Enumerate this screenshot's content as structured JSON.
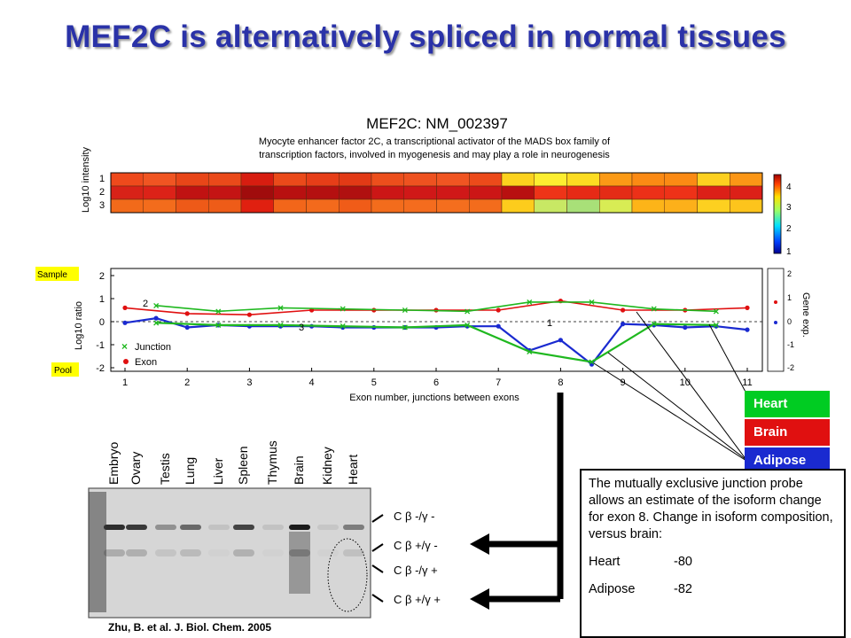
{
  "title": "MEF2C is alternatively spliced in normal tissues",
  "figure": {
    "gene_title": "MEF2C: NM_002397",
    "gene_desc_1": "Myocyte enhancer factor 2C, a transcriptional activator of the MADS box family of",
    "gene_desc_2": "transcription factors, involved in myogenesis and may play a role in neurogenesis",
    "heatmap_ylabel": "Log10 intensity",
    "heatmap_rows": [
      "1",
      "2",
      "3"
    ],
    "colorbar_ticks": [
      "4",
      "3",
      "2",
      "1"
    ],
    "sample_label": "Sample",
    "pool_label": "Pool",
    "ratio_ylabel": "Log10 ratio",
    "gene_exp_label": "Gene exp.",
    "yticks": [
      "2",
      "1",
      "0",
      "-1",
      "-2"
    ],
    "xticks": [
      "1",
      "2",
      "3",
      "4",
      "5",
      "6",
      "7",
      "8",
      "9",
      "10",
      "11"
    ],
    "xlabel": "Exon number, junctions between exons",
    "legend_junction": "Junction",
    "legend_exon": "Exon",
    "annot": [
      "2",
      "3",
      "1"
    ]
  },
  "chart_data": {
    "type": "line",
    "xlabel": "Exon number, junctions between exons",
    "ylabel": "Log10 ratio",
    "ylim": [
      -2,
      2
    ],
    "xlim": [
      1,
      11
    ],
    "series": [
      {
        "name": "Exon",
        "x": [
          1,
          2,
          3,
          4,
          5,
          6,
          7,
          8,
          9,
          10,
          11
        ],
        "y": [
          0.6,
          0.35,
          0.3,
          0.5,
          0.5,
          0.5,
          0.5,
          0.9,
          0.5,
          0.5,
          0.6
        ]
      },
      {
        "name": "Junction",
        "x": [
          1.5,
          2.5,
          3.5,
          4.5,
          5.5,
          6.5,
          7.5,
          8.5,
          9.5,
          10.5
        ],
        "y": [
          0.7,
          0.45,
          0.6,
          0.55,
          0.5,
          0.45,
          0.85,
          0.85,
          0.55,
          0.45
        ]
      },
      {
        "name": "Exon",
        "x": [
          1,
          1.5,
          2,
          2.5,
          3,
          3.5,
          4,
          4.5,
          5,
          5.5,
          6,
          6.5,
          7,
          7.5,
          8,
          8.5,
          9,
          9.5,
          10,
          10.5,
          11
        ],
        "y": [
          -0.05,
          0.15,
          -0.25,
          -0.15,
          -0.2,
          -0.2,
          -0.2,
          -0.25,
          -0.25,
          -0.25,
          -0.25,
          -0.2,
          -0.2,
          -1.25,
          -0.8,
          -1.85,
          -0.1,
          -0.15,
          -0.25,
          -0.2,
          -0.35
        ]
      },
      {
        "name": "Junction",
        "x": [
          1.5,
          2.5,
          3.5,
          4.5,
          5.5,
          6.5,
          7.5,
          8.5,
          9.5,
          10.5
        ],
        "y": [
          -0.05,
          -0.15,
          -0.15,
          -0.2,
          -0.25,
          -0.15,
          -1.3,
          -1.75,
          -0.1,
          -0.15
        ]
      }
    ],
    "heatmap": {
      "rows": [
        "1",
        "2",
        "3"
      ],
      "colors": [
        [
          "#ee4a1c",
          "#f05522",
          "#e84618",
          "#ea4a1a",
          "#d71d10",
          "#ea4a1a",
          "#e63e18",
          "#e23a16",
          "#ec4f1c",
          "#ee5220",
          "#f05522",
          "#ec4a1a",
          "#fcd21e",
          "#fdee30",
          "#fcdc22",
          "#fb9a16",
          "#fb8a14",
          "#fb8a14",
          "#fdd020",
          "#fb9616"
        ],
        [
          "#d82218",
          "#dc2218",
          "#c01212",
          "#c41414",
          "#a00c0c",
          "#b81010",
          "#b41010",
          "#b01010",
          "#cc1616",
          "#d01818",
          "#d01818",
          "#cc1616",
          "#b81010",
          "#ee3418",
          "#e62a16",
          "#e42c16",
          "#ec3018",
          "#ee3218",
          "#dc2018",
          "#dc2018"
        ],
        [
          "#f26a1a",
          "#f36c1c",
          "#ee5a18",
          "#ee5c18",
          "#e02010",
          "#f2661a",
          "#f36a1c",
          "#f05c18",
          "#f36c1c",
          "#f46c1e",
          "#f46e1e",
          "#f36c1c",
          "#fdcc1c",
          "#c8e864",
          "#a8e078",
          "#d8ec54",
          "#fdb418",
          "#fdb01a",
          "#fdd020",
          "#fdc41c"
        ]
      ]
    }
  },
  "callouts": [
    {
      "label": "Heart",
      "color": "#00cc22"
    },
    {
      "label": "Brain",
      "color": "#e01010"
    },
    {
      "label": "Adipose",
      "color": "#1a2ad0"
    }
  ],
  "gel": {
    "lanes": [
      "Embryo",
      "Ovary",
      "Testis",
      "Lung",
      "Liver",
      "Spleen",
      "Thymus",
      "Brain",
      "Kidney",
      "Heart"
    ],
    "bands": [
      "C β -/γ -",
      "C β +/γ -",
      "C β -/γ +",
      "C β +/γ +"
    ]
  },
  "note": {
    "text": "The mutually exclusive junction probe allows an estimate of the isoform change for exon 8. Change in isoform composition, versus brain:",
    "rows": [
      {
        "label": "Heart",
        "value": "-80"
      },
      {
        "label": "Adipose",
        "value": "-82"
      }
    ]
  },
  "citation": "Zhu, B. et al. J. Biol. Chem. 2005"
}
